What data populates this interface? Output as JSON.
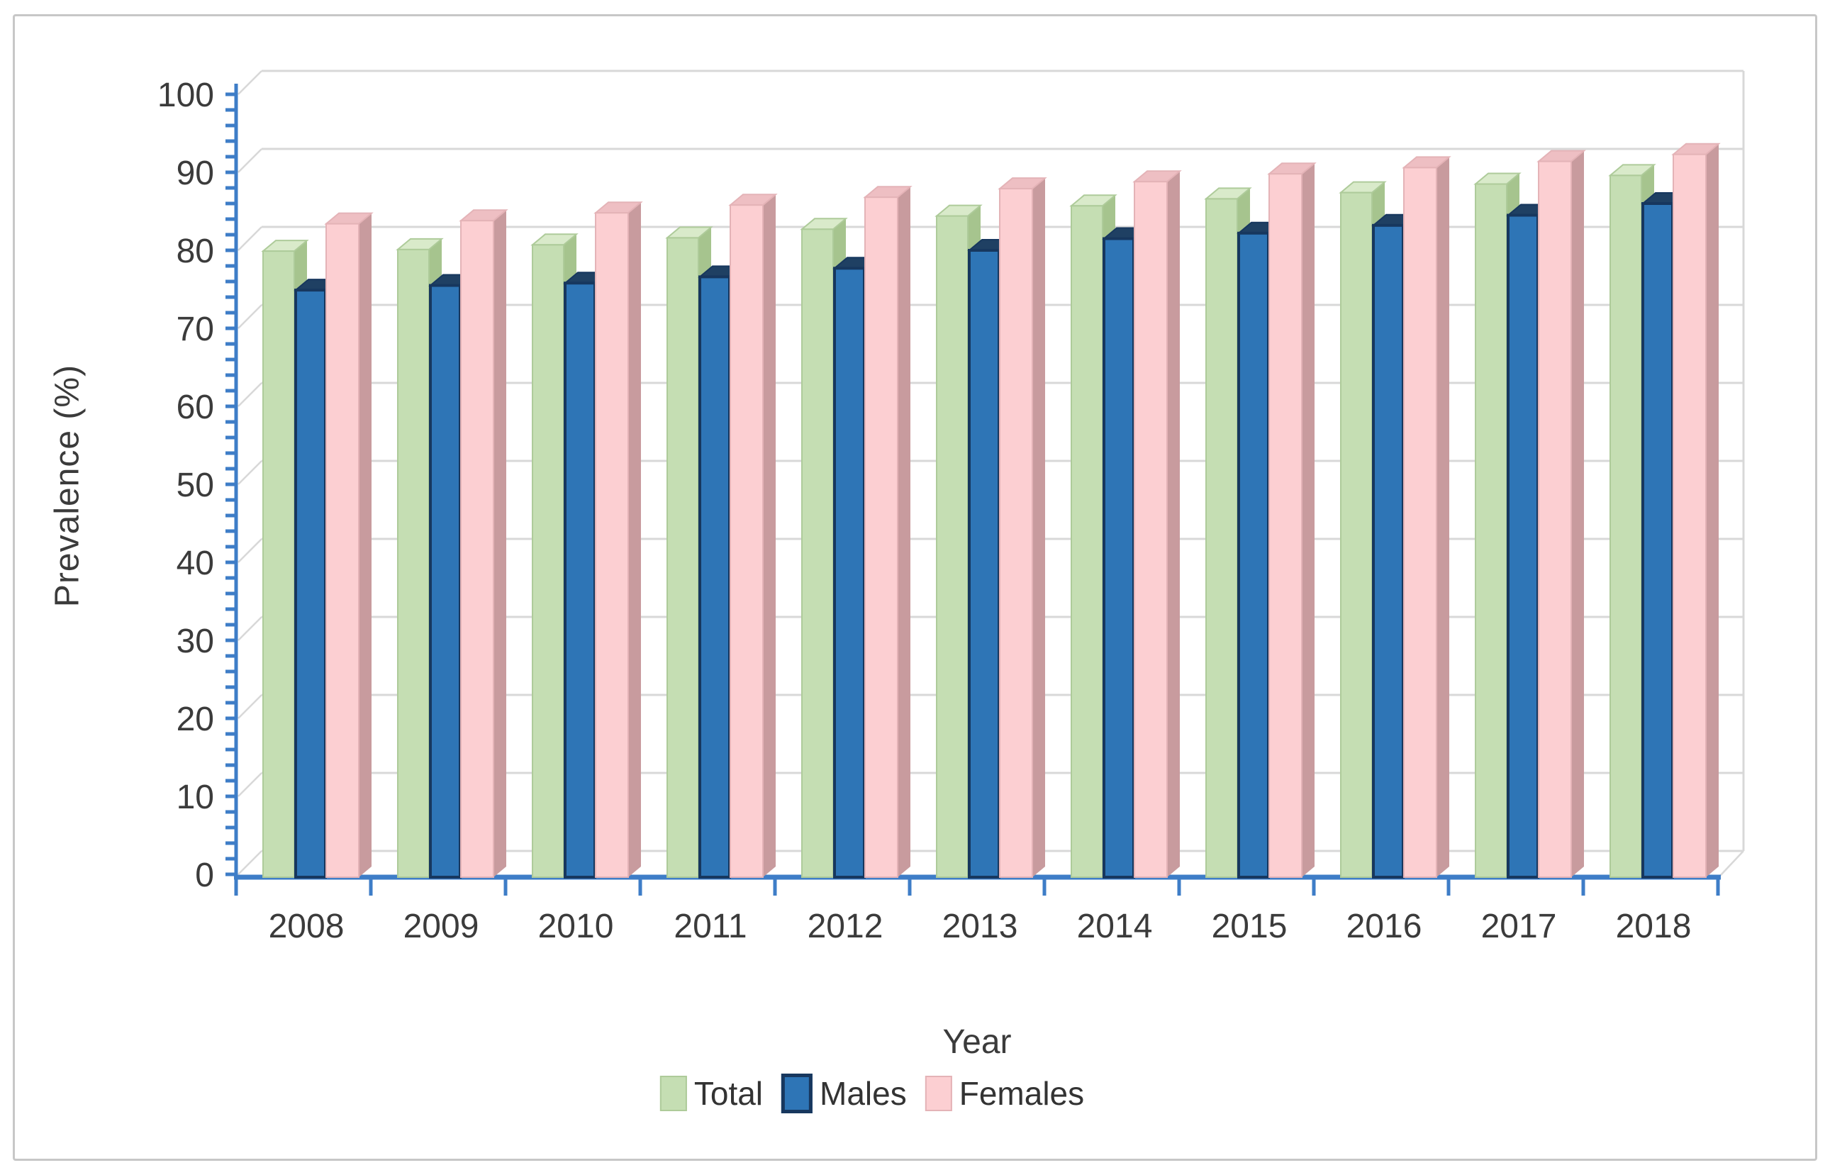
{
  "chart_data": {
    "type": "bar",
    "variant": "3d-clustered-column",
    "title": "",
    "xlabel": "Year",
    "ylabel": "Prevalence (%)",
    "categories": [
      "2008",
      "2009",
      "2010",
      "2011",
      "2012",
      "2013",
      "2014",
      "2015",
      "2016",
      "2017",
      "2018"
    ],
    "series": [
      {
        "name": "Total",
        "values": [
          79.9,
          80.1,
          80.7,
          81.6,
          82.7,
          84.4,
          85.7,
          86.6,
          87.4,
          88.5,
          89.6
        ],
        "colors": {
          "front": "#c5deb3",
          "top": "#d9eaca",
          "side": "#a6c48e",
          "stroke": "#aecb9a"
        }
      },
      {
        "name": "Males",
        "values": [
          74.9,
          75.5,
          75.8,
          76.6,
          77.7,
          80.0,
          81.5,
          82.2,
          83.2,
          84.5,
          86.0
        ],
        "colors": {
          "front": "#2e75b6",
          "top": "#1f4063",
          "side": "#1d3f66",
          "stroke": "#17375e"
        }
      },
      {
        "name": "Females",
        "values": [
          83.4,
          83.8,
          84.8,
          85.8,
          86.8,
          87.9,
          88.8,
          89.8,
          90.6,
          91.4,
          92.3
        ],
        "colors": {
          "front": "#fccfd2",
          "top": "#eebfc3",
          "side": "#c89b9e",
          "stroke": "#e4b3b7"
        }
      }
    ],
    "ylim": [
      0,
      100
    ],
    "ytick_step": 10,
    "yticks": [
      "0",
      "10",
      "20",
      "30",
      "40",
      "50",
      "60",
      "70",
      "80",
      "90",
      "100"
    ],
    "grid": true,
    "legend_position": "bottom",
    "axis_color": "#3e7dc7",
    "grid_color": "#d8d8d8",
    "text_color": "#3b3b3b",
    "frame_color": "#c7c7c7"
  }
}
